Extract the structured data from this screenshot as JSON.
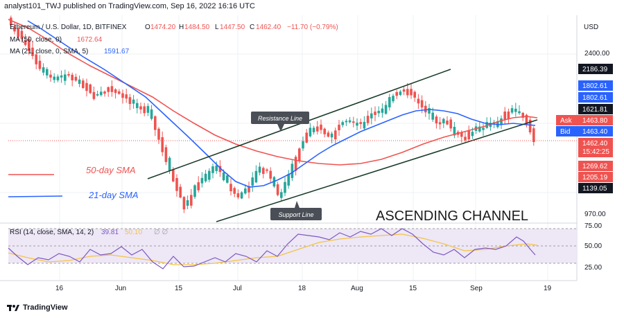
{
  "header": {
    "published_text": "analyst101_TWJ published on TradingView.com, Sep 16, 2022 16:16 UTC"
  },
  "legend": {
    "symbol": "Ethereum / U.S. Dollar, 1D, BITFINEX",
    "o_label": "O",
    "o_value": "1474.20",
    "h_label": "H",
    "h_value": "1484.50",
    "l_label": "L",
    "l_value": "1447.50",
    "c_label": "C",
    "c_value": "1462.40",
    "change": "−11.70 (−0.79%)",
    "ma50_label": "MA (50, close, 0)",
    "ma50_value": "1672.64",
    "ma21_label": "MA (21, close, 0, SMA, 5)",
    "ma21_value": "1591.67"
  },
  "price_axis": {
    "currency": "USD",
    "ticks": [
      "2400.00",
      "970.00"
    ],
    "labels": [
      {
        "text": "2186.39",
        "bg": "#131722",
        "fg": "#ffffff"
      },
      {
        "text": "1802.61",
        "bg": "#2962ff",
        "fg": "#ffffff"
      },
      {
        "text": "1802.61",
        "bg": "#2962ff",
        "fg": "#ffffff"
      },
      {
        "text": "1621.81",
        "bg": "#131722",
        "fg": "#ffffff"
      },
      {
        "text": "1462.40",
        "bg": "#ef5350",
        "fg": "#ffffff"
      },
      {
        "text": "15:42:25",
        "bg": "#ef5350",
        "fg": "#ffffff"
      },
      {
        "text": "1269.62",
        "bg": "#ef5350",
        "fg": "#ffffff"
      },
      {
        "text": "1205.19",
        "bg": "#ef5350",
        "fg": "#ffffff"
      },
      {
        "text": "1139.05",
        "bg": "#131722",
        "fg": "#ffffff"
      }
    ],
    "ask": {
      "label": "Ask",
      "value": "1463.80"
    },
    "bid": {
      "label": "Bid",
      "value": "1463.40"
    }
  },
  "annotations": {
    "resistance": "Resistance Line",
    "support": "Support Line",
    "sma50": "50-day SMA",
    "sma21": "21-day SMA",
    "channel": "ASCENDING CHANNEL"
  },
  "rsi": {
    "label": "RSI (14, close, SMA, 14, 2)",
    "value": "39.81",
    "sma_value": "50.10",
    "ticks": [
      "75.00",
      "50.00",
      "25.00"
    ]
  },
  "time_axis": [
    "16",
    "Jun",
    "15",
    "Jul",
    "18",
    "Aug",
    "15",
    "Sep",
    "19"
  ],
  "footer": {
    "brand": "TradingView"
  },
  "colors": {
    "up": "#26a69a",
    "down": "#ef5350",
    "ma50": "#ef5350",
    "ma21": "#2962ff",
    "channel": "#1b3d2b",
    "rsi": "#7e57c2",
    "rsi_ma": "#f5c342",
    "band": "#ede7f6"
  }
}
